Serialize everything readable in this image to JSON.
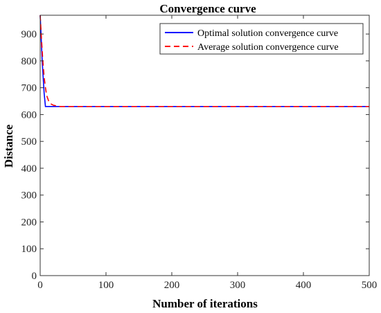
{
  "chart_data": {
    "type": "line",
    "title": "Convergence curve",
    "xlabel": "Number of iterations",
    "ylabel": "Distance",
    "xlim": [
      0,
      500
    ],
    "ylim": [
      0,
      970
    ],
    "xticks": [
      "0",
      "100",
      "200",
      "300",
      "400",
      "500"
    ],
    "yticks": [
      "0",
      "100",
      "200",
      "300",
      "400",
      "500",
      "600",
      "700",
      "800",
      "900"
    ],
    "grid": false,
    "legend_position": "top-right",
    "series": [
      {
        "name": "Optimal solution convergence curve",
        "color": "#0000ff",
        "style": "solid",
        "x": [
          0,
          3,
          6,
          8,
          100,
          200,
          300,
          400,
          500
        ],
        "y": [
          970,
          800,
          680,
          630,
          630,
          630,
          630,
          630,
          630
        ]
      },
      {
        "name": "Average solution convergence curve",
        "color": "#ff0000",
        "style": "dashed",
        "x": [
          0,
          2,
          4,
          6,
          8,
          10,
          13,
          16,
          20,
          25,
          30,
          100,
          200,
          300,
          400,
          500
        ],
        "y": [
          970,
          880,
          800,
          740,
          700,
          670,
          650,
          640,
          635,
          632,
          630,
          630,
          630,
          630,
          630,
          630
        ]
      }
    ]
  }
}
